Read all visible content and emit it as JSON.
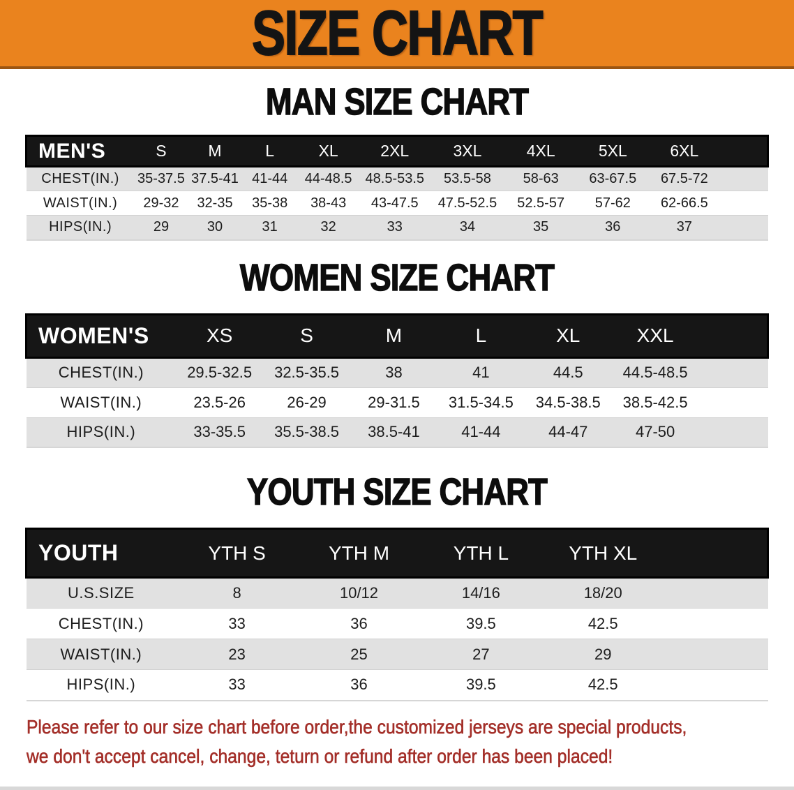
{
  "banner": {
    "title": "SIZE CHART"
  },
  "sections": [
    {
      "heading": "MAN SIZE CHART",
      "corner": "MEN'S",
      "columns": [
        "S",
        "M",
        "L",
        "XL",
        "2XL",
        "3XL",
        "4XL",
        "5XL",
        "6XL"
      ],
      "rows": [
        {
          "label": "CHEST(IN.)",
          "values": [
            "35-37.5",
            "37.5-41",
            "41-44",
            "44-48.5",
            "48.5-53.5",
            "53.5-58",
            "58-63",
            "63-67.5",
            "67.5-72"
          ]
        },
        {
          "label": "WAIST(IN.)",
          "values": [
            "29-32",
            "32-35",
            "35-38",
            "38-43",
            "43-47.5",
            "47.5-52.5",
            "52.5-57",
            "57-62",
            "62-66.5"
          ]
        },
        {
          "label": "HIPS(IN.)",
          "values": [
            "29",
            "30",
            "31",
            "32",
            "33",
            "34",
            "35",
            "36",
            "37"
          ]
        }
      ]
    },
    {
      "heading": "WOMEN SIZE CHART",
      "corner": "WOMEN'S",
      "columns": [
        "XS",
        "S",
        "M",
        "L",
        "XL",
        "XXL"
      ],
      "rows": [
        {
          "label": "CHEST(IN.)",
          "values": [
            "29.5-32.5",
            "32.5-35.5",
            "38",
            "41",
            "44.5",
            "44.5-48.5"
          ]
        },
        {
          "label": "WAIST(IN.)",
          "values": [
            "23.5-26",
            "26-29",
            "29-31.5",
            "31.5-34.5",
            "34.5-38.5",
            "38.5-42.5"
          ]
        },
        {
          "label": "HIPS(IN.)",
          "values": [
            "33-35.5",
            "35.5-38.5",
            "38.5-41",
            "41-44",
            "44-47",
            "47-50"
          ]
        }
      ]
    },
    {
      "heading": "YOUTH SIZE CHART",
      "corner": "YOUTH",
      "columns": [
        "YTH S",
        "YTH M",
        "YTH L",
        "YTH XL"
      ],
      "rows": [
        {
          "label": "U.S.SIZE",
          "values": [
            "8",
            "10/12",
            "14/16",
            "18/20"
          ]
        },
        {
          "label": "CHEST(IN.)",
          "values": [
            "33",
            "36",
            "39.5",
            "42.5"
          ]
        },
        {
          "label": "WAIST(IN.)",
          "values": [
            "23",
            "25",
            "27",
            "29"
          ]
        },
        {
          "label": "HIPS(IN.)",
          "values": [
            "33",
            "36",
            "39.5",
            "42.5"
          ]
        }
      ]
    }
  ],
  "disclaimer": {
    "line1": "Please refer to our size chart before order,the customized jerseys are special products,",
    "line2": "we don't accept cancel, change, teturn or refund after order has been placed!"
  },
  "colors": {
    "banner_bg": "#EA831E",
    "banner_title": "#141414",
    "table_header_bg": "#161616",
    "table_header_text": "#ffffff",
    "band_gray": "#E1E1E1",
    "disclaimer_red": "#A32E28"
  }
}
